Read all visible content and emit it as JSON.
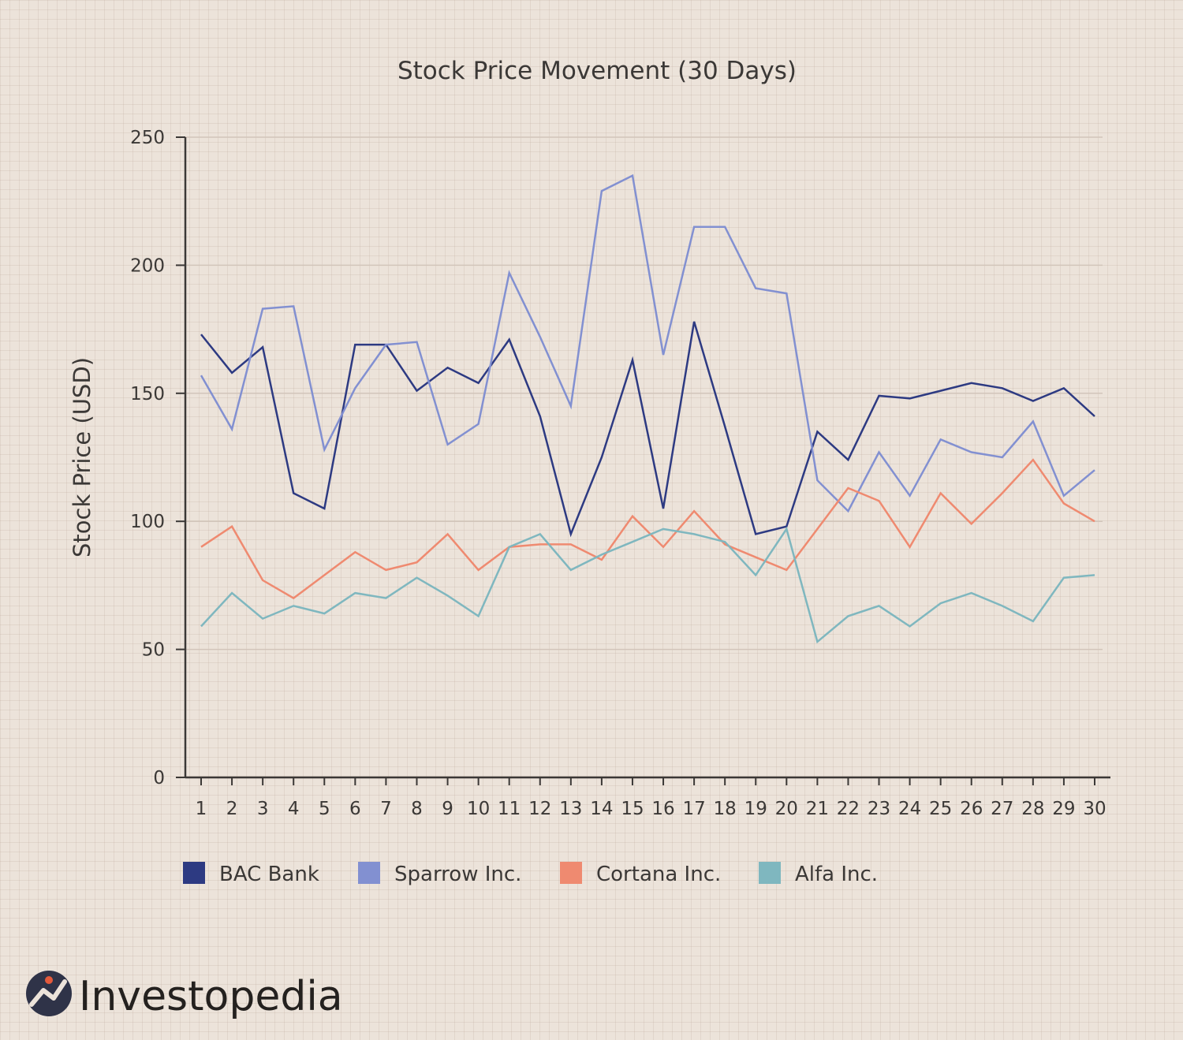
{
  "chart_data": {
    "type": "line",
    "title": "Stock Price Movement (30 Days)",
    "xlabel": "",
    "ylabel": "Stock Price (USD)",
    "ylim": [
      0,
      250
    ],
    "yticks": [
      0,
      50,
      100,
      150,
      200,
      250
    ],
    "categories": [
      "1",
      "2",
      "3",
      "4",
      "5",
      "6",
      "7",
      "8",
      "9",
      "10",
      "11",
      "12",
      "13",
      "14",
      "15",
      "16",
      "17",
      "18",
      "19",
      "20",
      "21",
      "22",
      "23",
      "24",
      "25",
      "26",
      "27",
      "28",
      "29",
      "30"
    ],
    "grid": "horizontal",
    "legend_position": "bottom-left",
    "series": [
      {
        "name": "BAC Bank",
        "color": "#2d3a82",
        "values": [
          173,
          158,
          168,
          111,
          105,
          169,
          169,
          151,
          160,
          154,
          171,
          141,
          95,
          125,
          163,
          105,
          178,
          137,
          95,
          98,
          135,
          124,
          149,
          148,
          151,
          154,
          152,
          147,
          152,
          141
        ]
      },
      {
        "name": "Sparrow Inc.",
        "color": "#8290d1",
        "values": [
          157,
          136,
          183,
          184,
          128,
          152,
          169,
          170,
          130,
          138,
          197,
          172,
          145,
          229,
          235,
          165,
          215,
          215,
          191,
          189,
          116,
          104,
          127,
          110,
          132,
          127,
          125,
          139,
          110,
          120
        ]
      },
      {
        "name": "Cortana Inc.",
        "color": "#ef8a70",
        "values": [
          90,
          98,
          77,
          70,
          79,
          88,
          81,
          84,
          95,
          81,
          90,
          91,
          91,
          85,
          102,
          90,
          104,
          91,
          86,
          81,
          97,
          113,
          108,
          90,
          111,
          99,
          111,
          124,
          107,
          100
        ]
      },
      {
        "name": "Alfa Inc.",
        "color": "#7fb7bf",
        "values": [
          59,
          72,
          62,
          67,
          64,
          72,
          70,
          78,
          71,
          63,
          90,
          95,
          81,
          87,
          92,
          97,
          95,
          92,
          79,
          97,
          53,
          63,
          67,
          59,
          68,
          72,
          67,
          61,
          78,
          79
        ]
      }
    ]
  },
  "brand": {
    "name": "Investopedia",
    "icon": "investopedia-logo-icon",
    "icon_bg": "#2f3348",
    "icon_accent": "#e45a3c"
  }
}
